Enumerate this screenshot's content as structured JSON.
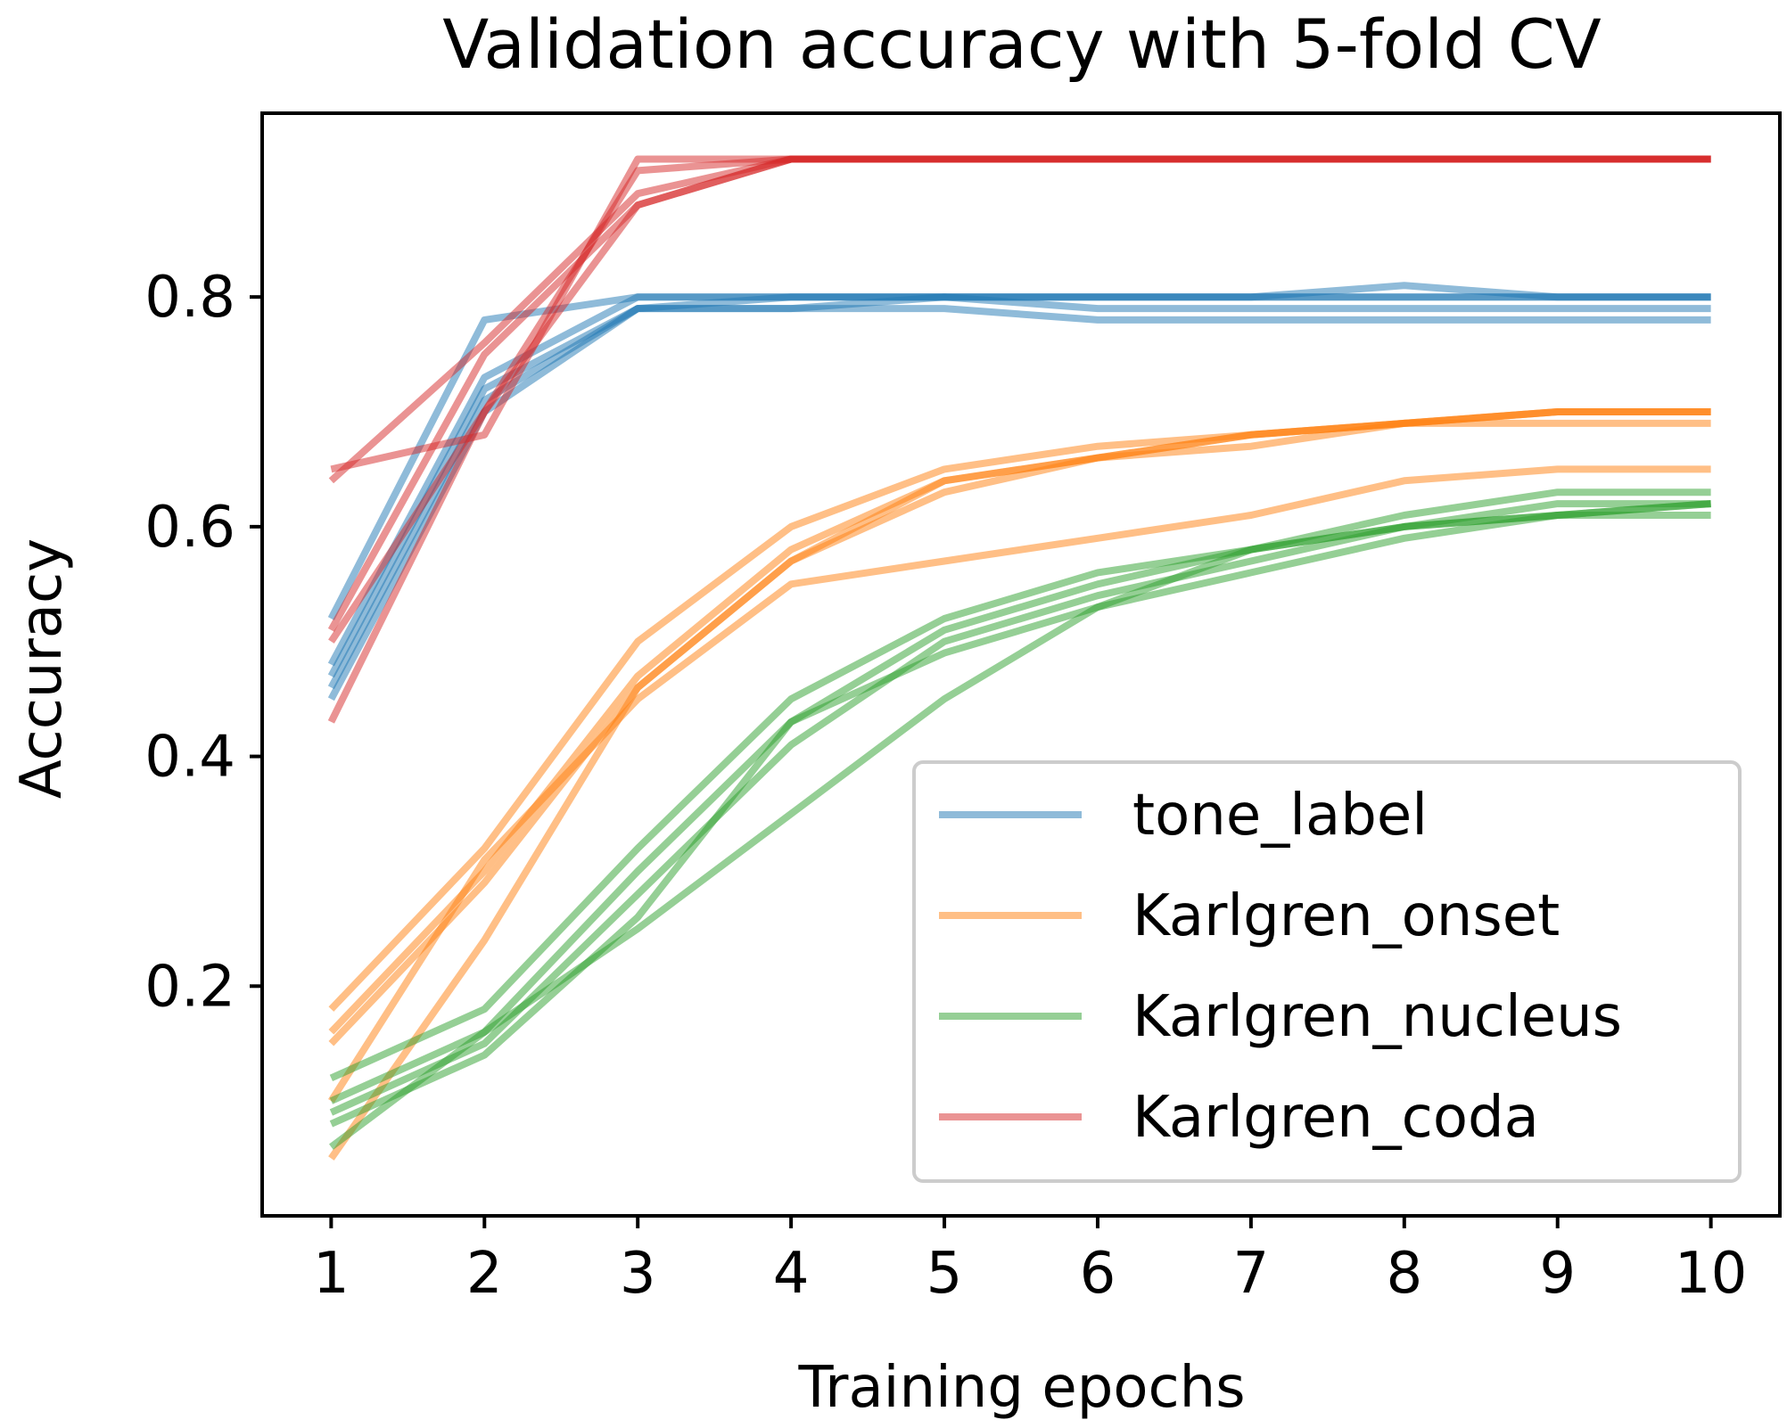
{
  "chart_data": {
    "type": "line",
    "title": "Validation accuracy with 5-fold CV",
    "xlabel": "Training epochs",
    "ylabel": "Accuracy",
    "x": [
      1,
      2,
      3,
      4,
      5,
      6,
      7,
      8,
      9,
      10
    ],
    "xticks": [
      "1",
      "2",
      "3",
      "4",
      "5",
      "6",
      "7",
      "8",
      "9",
      "10"
    ],
    "yticks": [
      0.2,
      0.4,
      0.6,
      0.8
    ],
    "ytick_labels": [
      "0.2",
      "0.4",
      "0.6",
      "0.8"
    ],
    "xlim": [
      0.55,
      10.45
    ],
    "ylim": [
      0.0,
      0.96
    ],
    "grid": false,
    "legend_position": "lower-right",
    "series": [
      {
        "name": "tone_label",
        "color": "#1f77b4",
        "folds": [
          [
            0.52,
            0.78,
            0.8,
            0.8,
            0.8,
            0.8,
            0.8,
            0.8,
            0.8,
            0.8
          ],
          [
            0.48,
            0.73,
            0.8,
            0.8,
            0.8,
            0.79,
            0.79,
            0.79,
            0.79,
            0.79
          ],
          [
            0.47,
            0.72,
            0.79,
            0.79,
            0.79,
            0.78,
            0.78,
            0.78,
            0.78,
            0.78
          ],
          [
            0.46,
            0.71,
            0.79,
            0.79,
            0.8,
            0.8,
            0.8,
            0.8,
            0.8,
            0.8
          ],
          [
            0.45,
            0.7,
            0.79,
            0.8,
            0.8,
            0.8,
            0.8,
            0.81,
            0.8,
            0.8
          ]
        ]
      },
      {
        "name": "Karlgren_onset",
        "color": "#ff7f0e",
        "folds": [
          [
            0.18,
            0.32,
            0.5,
            0.6,
            0.65,
            0.67,
            0.68,
            0.69,
            0.7,
            0.7
          ],
          [
            0.16,
            0.3,
            0.47,
            0.58,
            0.64,
            0.66,
            0.68,
            0.69,
            0.7,
            0.7
          ],
          [
            0.15,
            0.29,
            0.46,
            0.57,
            0.63,
            0.66,
            0.67,
            0.69,
            0.69,
            0.69
          ],
          [
            0.1,
            0.31,
            0.45,
            0.55,
            0.57,
            0.59,
            0.61,
            0.64,
            0.65,
            0.65
          ],
          [
            0.05,
            0.24,
            0.46,
            0.57,
            0.64,
            0.66,
            0.68,
            0.69,
            0.7,
            0.7
          ]
        ]
      },
      {
        "name": "Karlgren_nucleus",
        "color": "#2ca02c",
        "folds": [
          [
            0.12,
            0.18,
            0.32,
            0.45,
            0.52,
            0.56,
            0.58,
            0.61,
            0.63,
            0.63
          ],
          [
            0.1,
            0.16,
            0.3,
            0.43,
            0.51,
            0.55,
            0.58,
            0.6,
            0.62,
            0.62
          ],
          [
            0.09,
            0.15,
            0.28,
            0.41,
            0.5,
            0.54,
            0.57,
            0.6,
            0.61,
            0.62
          ],
          [
            0.08,
            0.14,
            0.26,
            0.43,
            0.49,
            0.53,
            0.56,
            0.59,
            0.61,
            0.61
          ],
          [
            0.06,
            0.16,
            0.25,
            0.35,
            0.45,
            0.53,
            0.58,
            0.6,
            0.61,
            0.62
          ]
        ]
      },
      {
        "name": "Karlgren_coda",
        "color": "#d62728",
        "folds": [
          [
            0.65,
            0.68,
            0.92,
            0.92,
            0.92,
            0.92,
            0.92,
            0.92,
            0.92,
            0.92
          ],
          [
            0.64,
            0.76,
            0.89,
            0.92,
            0.92,
            0.92,
            0.92,
            0.92,
            0.92,
            0.92
          ],
          [
            0.51,
            0.75,
            0.88,
            0.92,
            0.92,
            0.92,
            0.92,
            0.92,
            0.92,
            0.92
          ],
          [
            0.5,
            0.7,
            0.88,
            0.92,
            0.92,
            0.92,
            0.92,
            0.92,
            0.92,
            0.92
          ],
          [
            0.43,
            0.7,
            0.91,
            0.92,
            0.92,
            0.92,
            0.92,
            0.92,
            0.92,
            0.92
          ]
        ]
      }
    ]
  }
}
